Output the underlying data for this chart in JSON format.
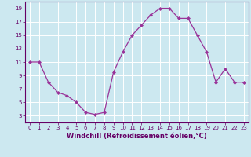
{
  "x": [
    0,
    1,
    2,
    3,
    4,
    5,
    6,
    7,
    8,
    9,
    10,
    11,
    12,
    13,
    14,
    15,
    16,
    17,
    18,
    19,
    20,
    21,
    22,
    23
  ],
  "y": [
    11,
    11,
    8,
    6.5,
    6,
    5,
    3.5,
    3.2,
    3.5,
    9.5,
    12.5,
    15,
    16.5,
    18,
    19,
    19,
    17.5,
    17.5,
    15,
    12.5,
    8,
    10,
    8,
    8
  ],
  "xlabel": "Windchill (Refroidissement éolien,°C)",
  "xlim_min": -0.5,
  "xlim_max": 23.5,
  "ylim_min": 2,
  "ylim_max": 20,
  "yticks": [
    3,
    5,
    7,
    9,
    11,
    13,
    15,
    17,
    19
  ],
  "xticks": [
    0,
    1,
    2,
    3,
    4,
    5,
    6,
    7,
    8,
    9,
    10,
    11,
    12,
    13,
    14,
    15,
    16,
    17,
    18,
    19,
    20,
    21,
    22,
    23
  ],
  "line_color": "#993399",
  "marker": "D",
  "marker_size": 2.0,
  "bg_color": "#cce8f0",
  "grid_color": "#ffffff",
  "label_color": "#660066",
  "tick_color": "#660066",
  "axis_color": "#660066",
  "tick_fontsize": 5.0,
  "xlabel_fontsize": 6.0,
  "linewidth": 0.9
}
